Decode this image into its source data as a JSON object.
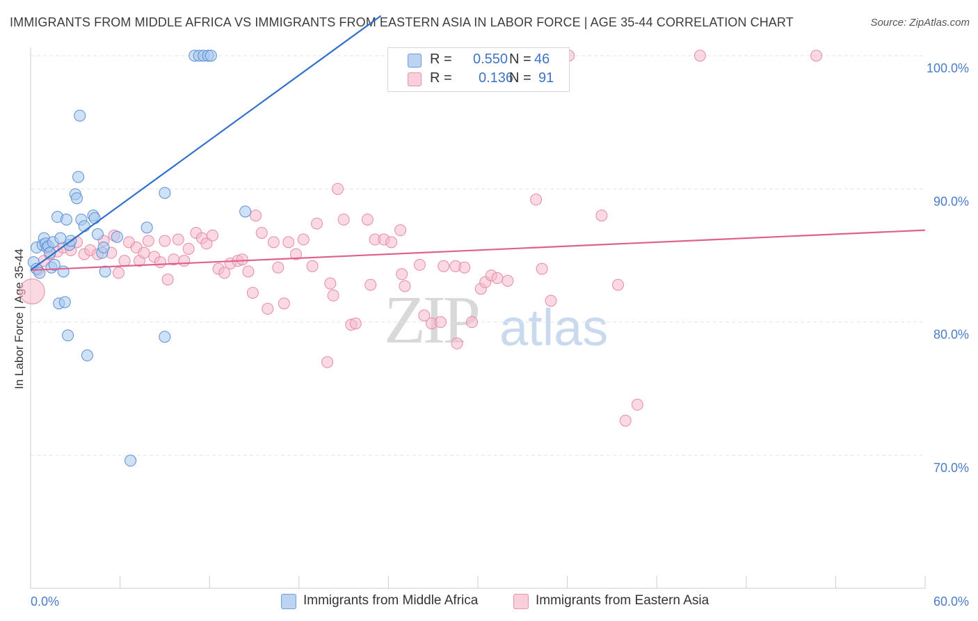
{
  "header": {
    "title": "IMMIGRANTS FROM MIDDLE AFRICA VS IMMIGRANTS FROM EASTERN ASIA IN LABOR FORCE | AGE 35-44 CORRELATION CHART",
    "source": "Source: ZipAtlas.com"
  },
  "watermark": {
    "zip": "ZIP",
    "atlas": "atlas"
  },
  "legend": {
    "rows": [
      {
        "r_label": "R =",
        "r_value": "0.550",
        "n_label": "N =",
        "n_value": "46"
      },
      {
        "r_label": "R =",
        "r_value": "0.136",
        "n_label": "N =",
        "n_value": "91"
      }
    ],
    "bottom": [
      "Immigrants from Middle Africa",
      "Immigrants from Eastern Asia"
    ]
  },
  "colors": {
    "blue_fill": "#a8c8ef",
    "blue_stroke": "#5b8fd4",
    "blue_line": "#2f6ec9",
    "pink_fill": "#f6b9cc",
    "pink_stroke": "#e88aa8",
    "pink_line": "#e0608c",
    "grid": "#e3e3e3",
    "tick_text": "#4a7cc7"
  },
  "chart_data": {
    "type": "scatter",
    "title": "IMMIGRANTS FROM MIDDLE AFRICA VS IMMIGRANTS FROM EASTERN ASIA IN LABOR FORCE | AGE 35-44 CORRELATION CHART",
    "ylabel": "In Labor Force | Age 35-44",
    "xlabel": "",
    "xlim": [
      0,
      60
    ],
    "ylim": [
      60,
      103
    ],
    "x_tick_labels": [
      "0.0%",
      "60.0%"
    ],
    "y_tick_labels": [
      "100.0%",
      "90.0%",
      "80.0%",
      "70.0%"
    ],
    "y_ticks": [
      100,
      90,
      80,
      70
    ],
    "grid": true,
    "legend_position": "top-center",
    "series": [
      {
        "name": "Immigrants from Middle Africa",
        "r": 0.55,
        "n": 46,
        "trend": {
          "x0": 0.0,
          "y0": 83.9,
          "x1": 23.5,
          "y1": 103.0
        },
        "points": [
          [
            0.2,
            84.5
          ],
          [
            0.4,
            85.6
          ],
          [
            0.4,
            84.0
          ],
          [
            0.6,
            83.7
          ],
          [
            0.8,
            85.8
          ],
          [
            0.9,
            86.3
          ],
          [
            1.0,
            85.9
          ],
          [
            1.1,
            85.6
          ],
          [
            1.2,
            85.7
          ],
          [
            1.3,
            85.2
          ],
          [
            1.4,
            84.1
          ],
          [
            1.5,
            86.0
          ],
          [
            1.6,
            84.3
          ],
          [
            1.8,
            87.9
          ],
          [
            1.9,
            81.4
          ],
          [
            2.0,
            86.3
          ],
          [
            2.2,
            83.8
          ],
          [
            2.3,
            81.5
          ],
          [
            2.4,
            87.7
          ],
          [
            2.5,
            79.0
          ],
          [
            2.6,
            85.8
          ],
          [
            2.7,
            86.1
          ],
          [
            3.0,
            89.6
          ],
          [
            3.1,
            89.3
          ],
          [
            3.2,
            90.9
          ],
          [
            3.3,
            95.5
          ],
          [
            3.4,
            87.7
          ],
          [
            3.6,
            87.2
          ],
          [
            3.8,
            77.5
          ],
          [
            4.2,
            88.0
          ],
          [
            4.3,
            87.8
          ],
          [
            4.5,
            86.6
          ],
          [
            4.8,
            85.2
          ],
          [
            4.9,
            85.6
          ],
          [
            5.0,
            83.8
          ],
          [
            5.8,
            86.4
          ],
          [
            6.7,
            69.6
          ],
          [
            7.8,
            87.1
          ],
          [
            9.0,
            89.7
          ],
          [
            9.0,
            78.9
          ],
          [
            11.0,
            100.0
          ],
          [
            11.3,
            100.0
          ],
          [
            11.6,
            100.0
          ],
          [
            11.9,
            100.0
          ],
          [
            12.1,
            100.0
          ],
          [
            14.4,
            88.3
          ]
        ]
      },
      {
        "name": "Immigrants from Eastern Asia",
        "r": 0.136,
        "n": 91,
        "trend": {
          "x0": 0.0,
          "y0": 83.9,
          "x1": 60.0,
          "y1": 86.9
        },
        "points": [
          [
            0.1,
            82.3
          ],
          [
            0.5,
            83.9
          ],
          [
            0.9,
            84.6
          ],
          [
            1.3,
            85.1
          ],
          [
            1.8,
            85.3
          ],
          [
            2.2,
            85.6
          ],
          [
            2.7,
            85.4
          ],
          [
            3.1,
            86.0
          ],
          [
            3.6,
            85.1
          ],
          [
            4.0,
            85.4
          ],
          [
            4.5,
            85.1
          ],
          [
            4.9,
            86.1
          ],
          [
            5.4,
            85.2
          ],
          [
            5.6,
            86.5
          ],
          [
            5.9,
            83.7
          ],
          [
            6.3,
            84.6
          ],
          [
            6.6,
            86.0
          ],
          [
            7.1,
            85.6
          ],
          [
            7.3,
            84.6
          ],
          [
            7.6,
            85.2
          ],
          [
            7.9,
            86.1
          ],
          [
            8.3,
            84.9
          ],
          [
            8.7,
            84.5
          ],
          [
            9.0,
            86.1
          ],
          [
            9.2,
            83.2
          ],
          [
            9.6,
            84.7
          ],
          [
            9.9,
            86.2
          ],
          [
            10.3,
            84.6
          ],
          [
            10.6,
            85.5
          ],
          [
            11.1,
            86.7
          ],
          [
            11.5,
            86.3
          ],
          [
            11.8,
            85.9
          ],
          [
            12.2,
            86.5
          ],
          [
            12.6,
            84.0
          ],
          [
            13.0,
            83.7
          ],
          [
            13.4,
            84.4
          ],
          [
            13.9,
            84.6
          ],
          [
            14.2,
            84.7
          ],
          [
            14.6,
            83.8
          ],
          [
            14.9,
            82.2
          ],
          [
            15.1,
            88.0
          ],
          [
            15.5,
            86.7
          ],
          [
            15.9,
            81.0
          ],
          [
            16.3,
            86.0
          ],
          [
            16.6,
            84.1
          ],
          [
            17.0,
            81.4
          ],
          [
            17.3,
            86.0
          ],
          [
            17.8,
            85.1
          ],
          [
            18.3,
            86.2
          ],
          [
            18.9,
            84.2
          ],
          [
            19.2,
            87.4
          ],
          [
            19.9,
            77.0
          ],
          [
            20.1,
            82.9
          ],
          [
            20.3,
            82.0
          ],
          [
            20.6,
            90.0
          ],
          [
            21.0,
            87.7
          ],
          [
            21.5,
            79.8
          ],
          [
            21.8,
            79.9
          ],
          [
            22.6,
            87.7
          ],
          [
            22.8,
            82.8
          ],
          [
            23.1,
            86.2
          ],
          [
            23.7,
            86.2
          ],
          [
            24.2,
            86.0
          ],
          [
            24.8,
            86.9
          ],
          [
            24.9,
            83.6
          ],
          [
            25.1,
            82.7
          ],
          [
            26.1,
            84.3
          ],
          [
            26.4,
            80.5
          ],
          [
            26.9,
            79.9
          ],
          [
            27.5,
            80.0
          ],
          [
            27.7,
            84.2
          ],
          [
            28.5,
            84.2
          ],
          [
            28.6,
            78.4
          ],
          [
            29.1,
            84.1
          ],
          [
            29.6,
            80.0
          ],
          [
            30.2,
            82.5
          ],
          [
            30.5,
            83.0
          ],
          [
            30.9,
            83.5
          ],
          [
            31.3,
            83.3
          ],
          [
            32.0,
            83.1
          ],
          [
            32.2,
            100.0
          ],
          [
            33.9,
            89.2
          ],
          [
            34.3,
            84.0
          ],
          [
            34.9,
            81.6
          ],
          [
            36.1,
            100.0
          ],
          [
            38.3,
            88.0
          ],
          [
            39.4,
            82.8
          ],
          [
            39.9,
            72.6
          ],
          [
            40.7,
            73.8
          ],
          [
            44.9,
            100.0
          ],
          [
            52.7,
            100.0
          ]
        ]
      }
    ]
  }
}
